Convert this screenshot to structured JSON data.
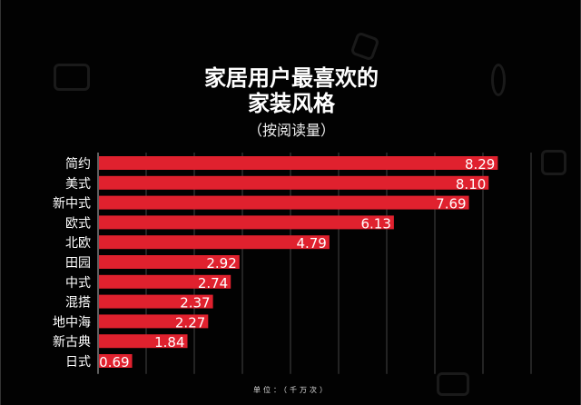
{
  "chart_data": {
    "type": "bar",
    "orientation": "horizontal",
    "title": "家居用户最喜欢的",
    "title_line2": "家装风格",
    "subtitle": "（按阅读量）",
    "unit_note": "单位：（千万次）",
    "categories": [
      "简约",
      "美式",
      "新中式",
      "欧式",
      "北欧",
      "田园",
      "中式",
      "混搭",
      "地中海",
      "新古典",
      "日式"
    ],
    "values": [
      8.29,
      8.1,
      7.69,
      6.13,
      4.79,
      2.92,
      2.74,
      2.37,
      2.27,
      1.84,
      0.69
    ],
    "value_labels": [
      "8.29",
      "8.10",
      "7.69",
      "6.13",
      "4.79",
      "2.92",
      "2.74",
      "2.37",
      "2.27",
      "1.84",
      "0.69"
    ],
    "xlim": [
      0,
      9
    ],
    "grid": true,
    "legend": "none",
    "colors": {
      "bar": "#e0212e",
      "background": "#020202",
      "grid": "#444444",
      "text": "#ffffff"
    }
  }
}
